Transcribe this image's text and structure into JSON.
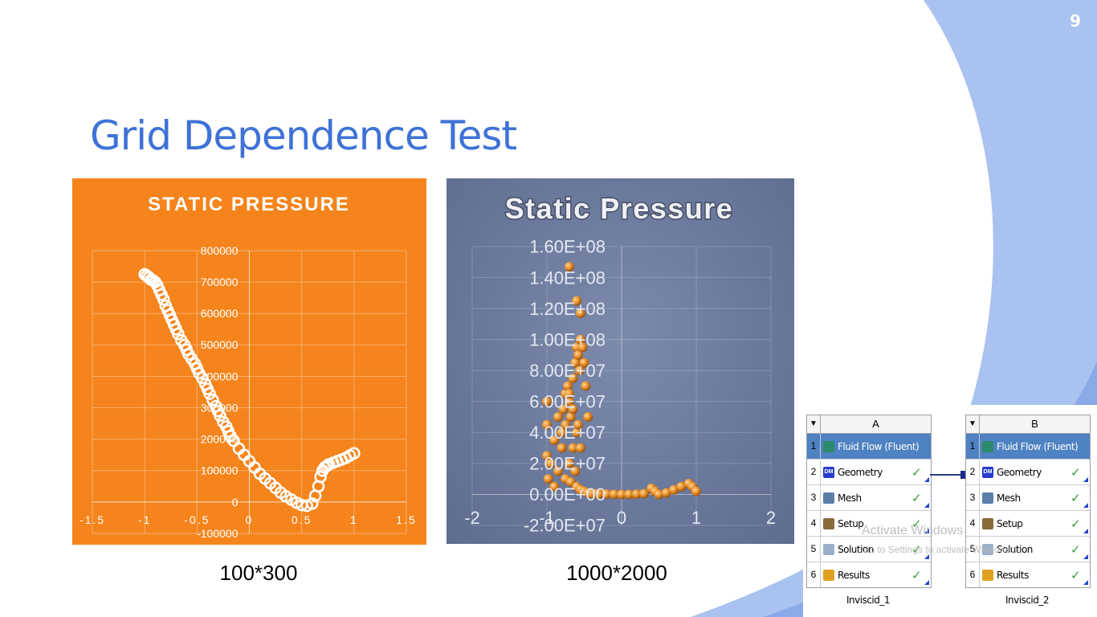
{
  "slide": {
    "number": "9",
    "title": "Grid Dependence Test",
    "colors": {
      "title": "#3e72d6",
      "decor_light": "#a9c2ef",
      "decor_dark": "#5b86e0"
    }
  },
  "charts": {
    "left_caption": "100*300",
    "right_caption": "1000*2000"
  },
  "chart_data": [
    {
      "type": "scatter",
      "title": "STATIC PRESSURE",
      "background": "#f5841c",
      "marker_color": "#ffffff",
      "xlim": [
        -1.5,
        1.5
      ],
      "ylim": [
        -100000,
        800000
      ],
      "xticks": [
        "-1.5",
        "-1",
        "-0.5",
        "0",
        "0.5",
        "1",
        "1.5"
      ],
      "yticks": [
        "-100000",
        "0",
        "100000",
        "200000",
        "300000",
        "400000",
        "500000",
        "600000",
        "700000",
        "800000"
      ],
      "x": [
        -1.0,
        -0.98,
        -0.96,
        -0.94,
        -0.92,
        -0.9,
        -0.88,
        -0.86,
        -0.84,
        -0.82,
        -0.8,
        -0.78,
        -0.76,
        -0.74,
        -0.72,
        -0.7,
        -0.68,
        -0.65,
        -0.62,
        -0.6,
        -0.58,
        -0.55,
        -0.52,
        -0.5,
        -0.48,
        -0.45,
        -0.42,
        -0.4,
        -0.38,
        -0.35,
        -0.32,
        -0.3,
        -0.28,
        -0.25,
        -0.22,
        -0.2,
        -0.18,
        -0.15,
        -0.1,
        -0.05,
        0.0,
        0.05,
        0.1,
        0.15,
        0.2,
        0.25,
        0.3,
        0.35,
        0.4,
        0.45,
        0.5,
        0.55,
        0.6,
        0.63,
        0.66,
        0.68,
        0.7,
        0.72,
        0.74,
        0.76,
        0.8,
        0.84,
        0.88,
        0.92,
        0.96,
        1.0
      ],
      "y": [
        725000,
        720000,
        715000,
        708000,
        705000,
        700000,
        690000,
        675000,
        660000,
        645000,
        625000,
        610000,
        595000,
        580000,
        565000,
        550000,
        535000,
        515000,
        500000,
        485000,
        470000,
        455000,
        440000,
        425000,
        410000,
        395000,
        375000,
        360000,
        345000,
        325000,
        305000,
        290000,
        275000,
        255000,
        240000,
        225000,
        210000,
        195000,
        170000,
        150000,
        130000,
        110000,
        90000,
        75000,
        60000,
        45000,
        30000,
        18000,
        8000,
        -2000,
        -10000,
        -12000,
        -5000,
        20000,
        50000,
        80000,
        100000,
        110000,
        115000,
        120000,
        125000,
        130000,
        135000,
        140000,
        148000,
        155000
      ]
    },
    {
      "type": "scatter",
      "title": "Static Pressure",
      "marker_color": "#e8902a",
      "xlim": [
        -2,
        2
      ],
      "ylim": [
        -20000000,
        160000000
      ],
      "xticks": [
        "-2",
        "-1",
        "0",
        "1",
        "2"
      ],
      "yticks": [
        "-2.00E+07",
        "0.00E+00",
        "2.00E+07",
        "4.00E+07",
        "6.00E+07",
        "8.00E+07",
        "1.00E+08",
        "1.20E+08",
        "1.40E+08",
        "1.60E+08"
      ],
      "x": [
        -1.0,
        -1.0,
        -1.0,
        -0.98,
        -0.95,
        -0.9,
        -0.85,
        -0.8,
        -0.78,
        -0.75,
        -0.72,
        -0.7,
        -0.68,
        -0.65,
        -0.62,
        -0.6,
        -0.58,
        -0.56,
        -0.55,
        -0.52,
        -0.5,
        -0.48,
        -0.45,
        -0.6,
        -0.65,
        -0.7,
        -0.62,
        -0.55,
        -0.58,
        -0.65,
        -0.7,
        -0.75,
        -0.8,
        -0.85,
        -0.9,
        -0.75,
        -0.68,
        -0.6,
        -0.55,
        -0.5,
        -0.45,
        -0.4,
        -0.35,
        -0.3,
        -0.2,
        -0.1,
        0.0,
        0.1,
        0.2,
        0.3,
        0.4,
        0.45,
        0.5,
        0.6,
        0.7,
        0.8,
        0.9,
        0.95,
        1.0,
        -0.6,
        -0.7,
        -0.55
      ],
      "y": [
        60000000,
        45000000,
        25000000,
        10000000,
        20000000,
        35000000,
        50000000,
        40000000,
        55000000,
        65000000,
        70000000,
        60000000,
        50000000,
        75000000,
        85000000,
        95000000,
        90000000,
        80000000,
        100000000,
        95000000,
        85000000,
        70000000,
        50000000,
        40000000,
        30000000,
        20000000,
        15000000,
        30000000,
        45000000,
        55000000,
        65000000,
        45000000,
        30000000,
        15000000,
        5000000,
        10000000,
        8000000,
        5000000,
        3000000,
        2000000,
        1000000,
        500000,
        400000,
        300000,
        200000,
        100000,
        0,
        0,
        200000,
        500000,
        4000000,
        2000000,
        0,
        1000000,
        3000000,
        5000000,
        7000000,
        5000000,
        2000000,
        125000000,
        147000000,
        117000000
      ]
    }
  ],
  "workbench": {
    "systems": [
      {
        "column": "A",
        "name": "Inviscid_1",
        "rows": [
          {
            "num": "1",
            "label": "Fluid Flow (Fluent)",
            "icon": "fluent-icon",
            "check": ""
          },
          {
            "num": "2",
            "label": "Geometry",
            "icon": "geometry-dm-icon",
            "icon_text": "DM",
            "check": "✓"
          },
          {
            "num": "3",
            "label": "Mesh",
            "icon": "mesh-icon",
            "check": "✓"
          },
          {
            "num": "4",
            "label": "Setup",
            "icon": "setup-icon",
            "check": "✓"
          },
          {
            "num": "5",
            "label": "Solution",
            "icon": "solution-icon",
            "check": "✓"
          },
          {
            "num": "6",
            "label": "Results",
            "icon": "results-icon",
            "check": "✓"
          }
        ]
      },
      {
        "column": "B",
        "name": "Inviscid_2",
        "rows": [
          {
            "num": "1",
            "label": "Fluid Flow (Fluent)",
            "icon": "fluent-icon",
            "check": ""
          },
          {
            "num": "2",
            "label": "Geometry",
            "icon": "geometry-dm-icon",
            "icon_text": "DM",
            "check": "✓"
          },
          {
            "num": "3",
            "label": "Mesh",
            "icon": "mesh-icon",
            "check": "✓"
          },
          {
            "num": "4",
            "label": "Setup",
            "icon": "setup-icon",
            "check": "✓"
          },
          {
            "num": "5",
            "label": "Solution",
            "icon": "solution-icon",
            "check": "✓"
          },
          {
            "num": "6",
            "label": "Results",
            "icon": "results-icon",
            "check": "✓"
          }
        ]
      }
    ],
    "collapse_glyph": "▼"
  },
  "watermark": {
    "title": "Activate Windows",
    "subtitle": "Go to Settings to activate Windows."
  }
}
